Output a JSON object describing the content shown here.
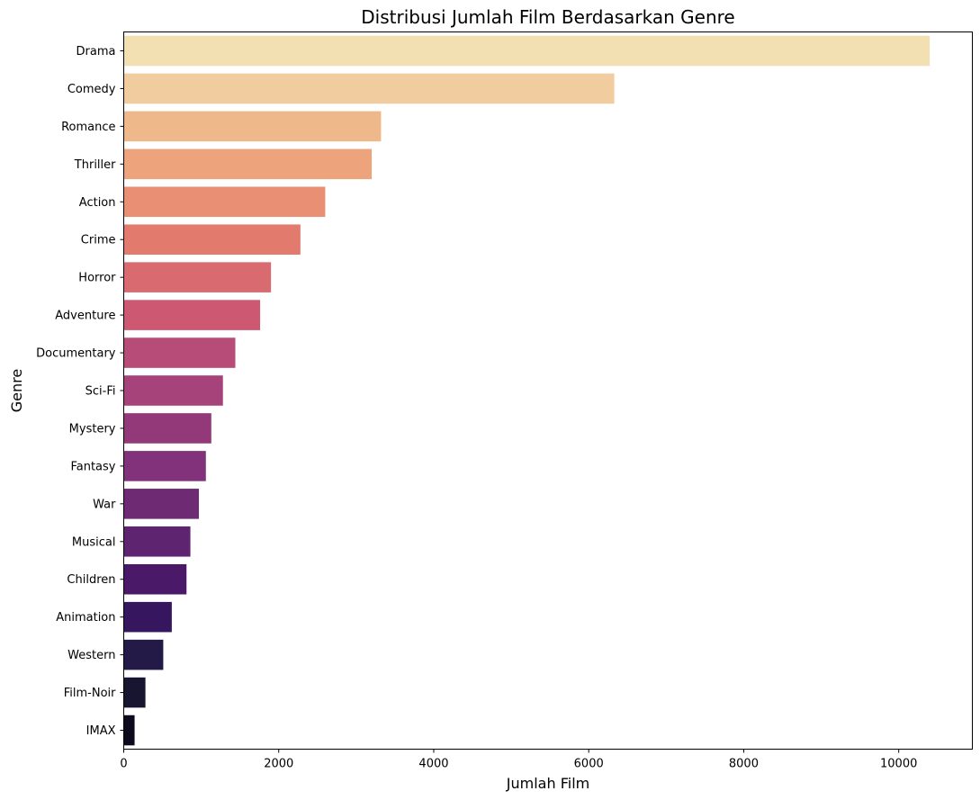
{
  "chart_data": {
    "type": "bar",
    "orientation": "horizontal",
    "title": "Distribusi Jumlah Film Berdasarkan Genre",
    "xlabel": "Jumlah Film",
    "ylabel": "Genre",
    "categories": [
      "Drama",
      "Comedy",
      "Romance",
      "Thriller",
      "Action",
      "Crime",
      "Horror",
      "Adventure",
      "Documentary",
      "Sci-Fi",
      "Mystery",
      "Fantasy",
      "War",
      "Musical",
      "Children",
      "Animation",
      "Western",
      "Film-Noir",
      "IMAX"
    ],
    "values": [
      10400,
      6330,
      3320,
      3200,
      2600,
      2280,
      1900,
      1760,
      1440,
      1280,
      1130,
      1060,
      970,
      860,
      810,
      620,
      510,
      280,
      140
    ],
    "colors": [
      "#f3e0b2",
      "#f0cc9e",
      "#efb88a",
      "#eda47c",
      "#e88f74",
      "#e27b6e",
      "#d96a70",
      "#cc5872",
      "#b84c78",
      "#a6437a",
      "#93397a",
      "#82327a",
      "#6e2b74",
      "#5e246f",
      "#4a1a68",
      "#371660",
      "#241a48",
      "#181530",
      "#0c0a1c"
    ],
    "xlim": [
      0,
      10950
    ],
    "xticks": [
      0,
      2000,
      4000,
      6000,
      8000,
      10000
    ],
    "grid": false,
    "legend": "none"
  }
}
